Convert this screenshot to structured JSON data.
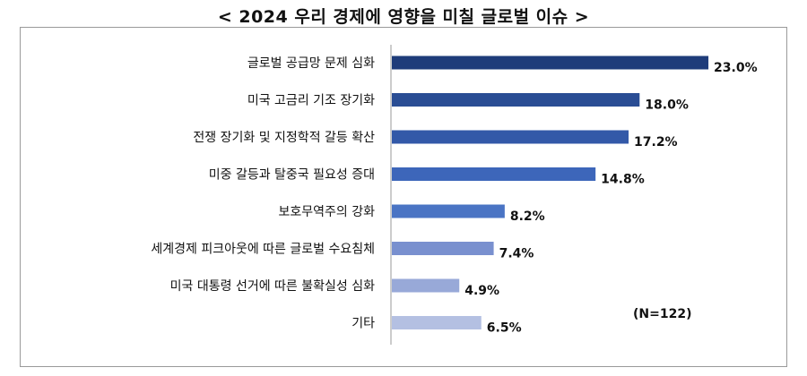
{
  "chart_data": {
    "type": "bar",
    "orientation": "horizontal",
    "title": "< 2024 우리 경제에 영향을 미칠 글로벌 이슈 >",
    "note": "(N=122)",
    "unit": "%",
    "categories": [
      "글로벌 공급망 문제 심화",
      "미국 고금리 기조 장기화",
      "전쟁 장기화 및 지정학적 갈등 확산",
      "미중 갈등과 탈중국 필요성 증대",
      "보호무역주의 강화",
      "세계경제 피크아웃에 따른 글로벌 수요침체",
      "미국 대통령 선거에 따른 불확실성 심화",
      "기타"
    ],
    "values": [
      23.0,
      18.0,
      17.2,
      14.8,
      8.2,
      7.4,
      4.9,
      6.5
    ],
    "value_labels": [
      "23.0%",
      "18.0%",
      "17.2%",
      "14.8%",
      "8.2%",
      "7.4%",
      "4.9%",
      "6.5%"
    ],
    "colors": [
      "#1f3c7a",
      "#2a4d94",
      "#3359a8",
      "#3d66ba",
      "#4a74c4",
      "#7990cf",
      "#98a9d8",
      "#b4c0e2"
    ],
    "grid": false,
    "legend": "none"
  }
}
